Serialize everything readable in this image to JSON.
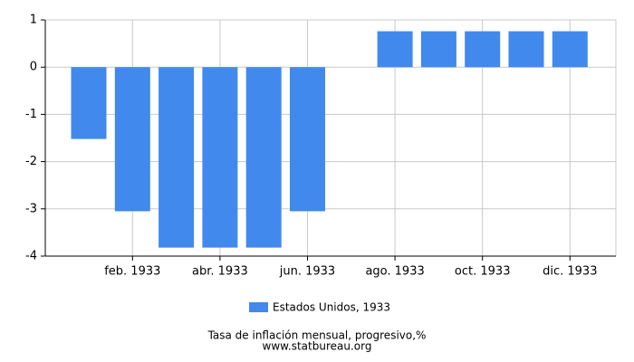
{
  "chart_data": {
    "type": "bar",
    "categories": [
      null,
      "feb. 1933",
      null,
      "abr. 1933",
      null,
      "jun. 1933",
      null,
      "ago. 1933",
      null,
      "oct. 1933",
      null,
      "dic. 1933"
    ],
    "series": [
      {
        "name": "Estados Unidos, 1933",
        "color": "#4189ed",
        "values": [
          -1.52,
          -3.05,
          -3.82,
          -3.82,
          -3.82,
          -3.05,
          0,
          0.76,
          0.76,
          0.76,
          0.76,
          0.76
        ]
      }
    ],
    "ylim": [
      -4,
      1
    ],
    "yticks": [
      -4,
      -3,
      -2,
      -1,
      0,
      1
    ],
    "grid": true,
    "footer": [
      "Tasa de inflación mensual, progresivo,%",
      "www.statbureau.org"
    ]
  }
}
